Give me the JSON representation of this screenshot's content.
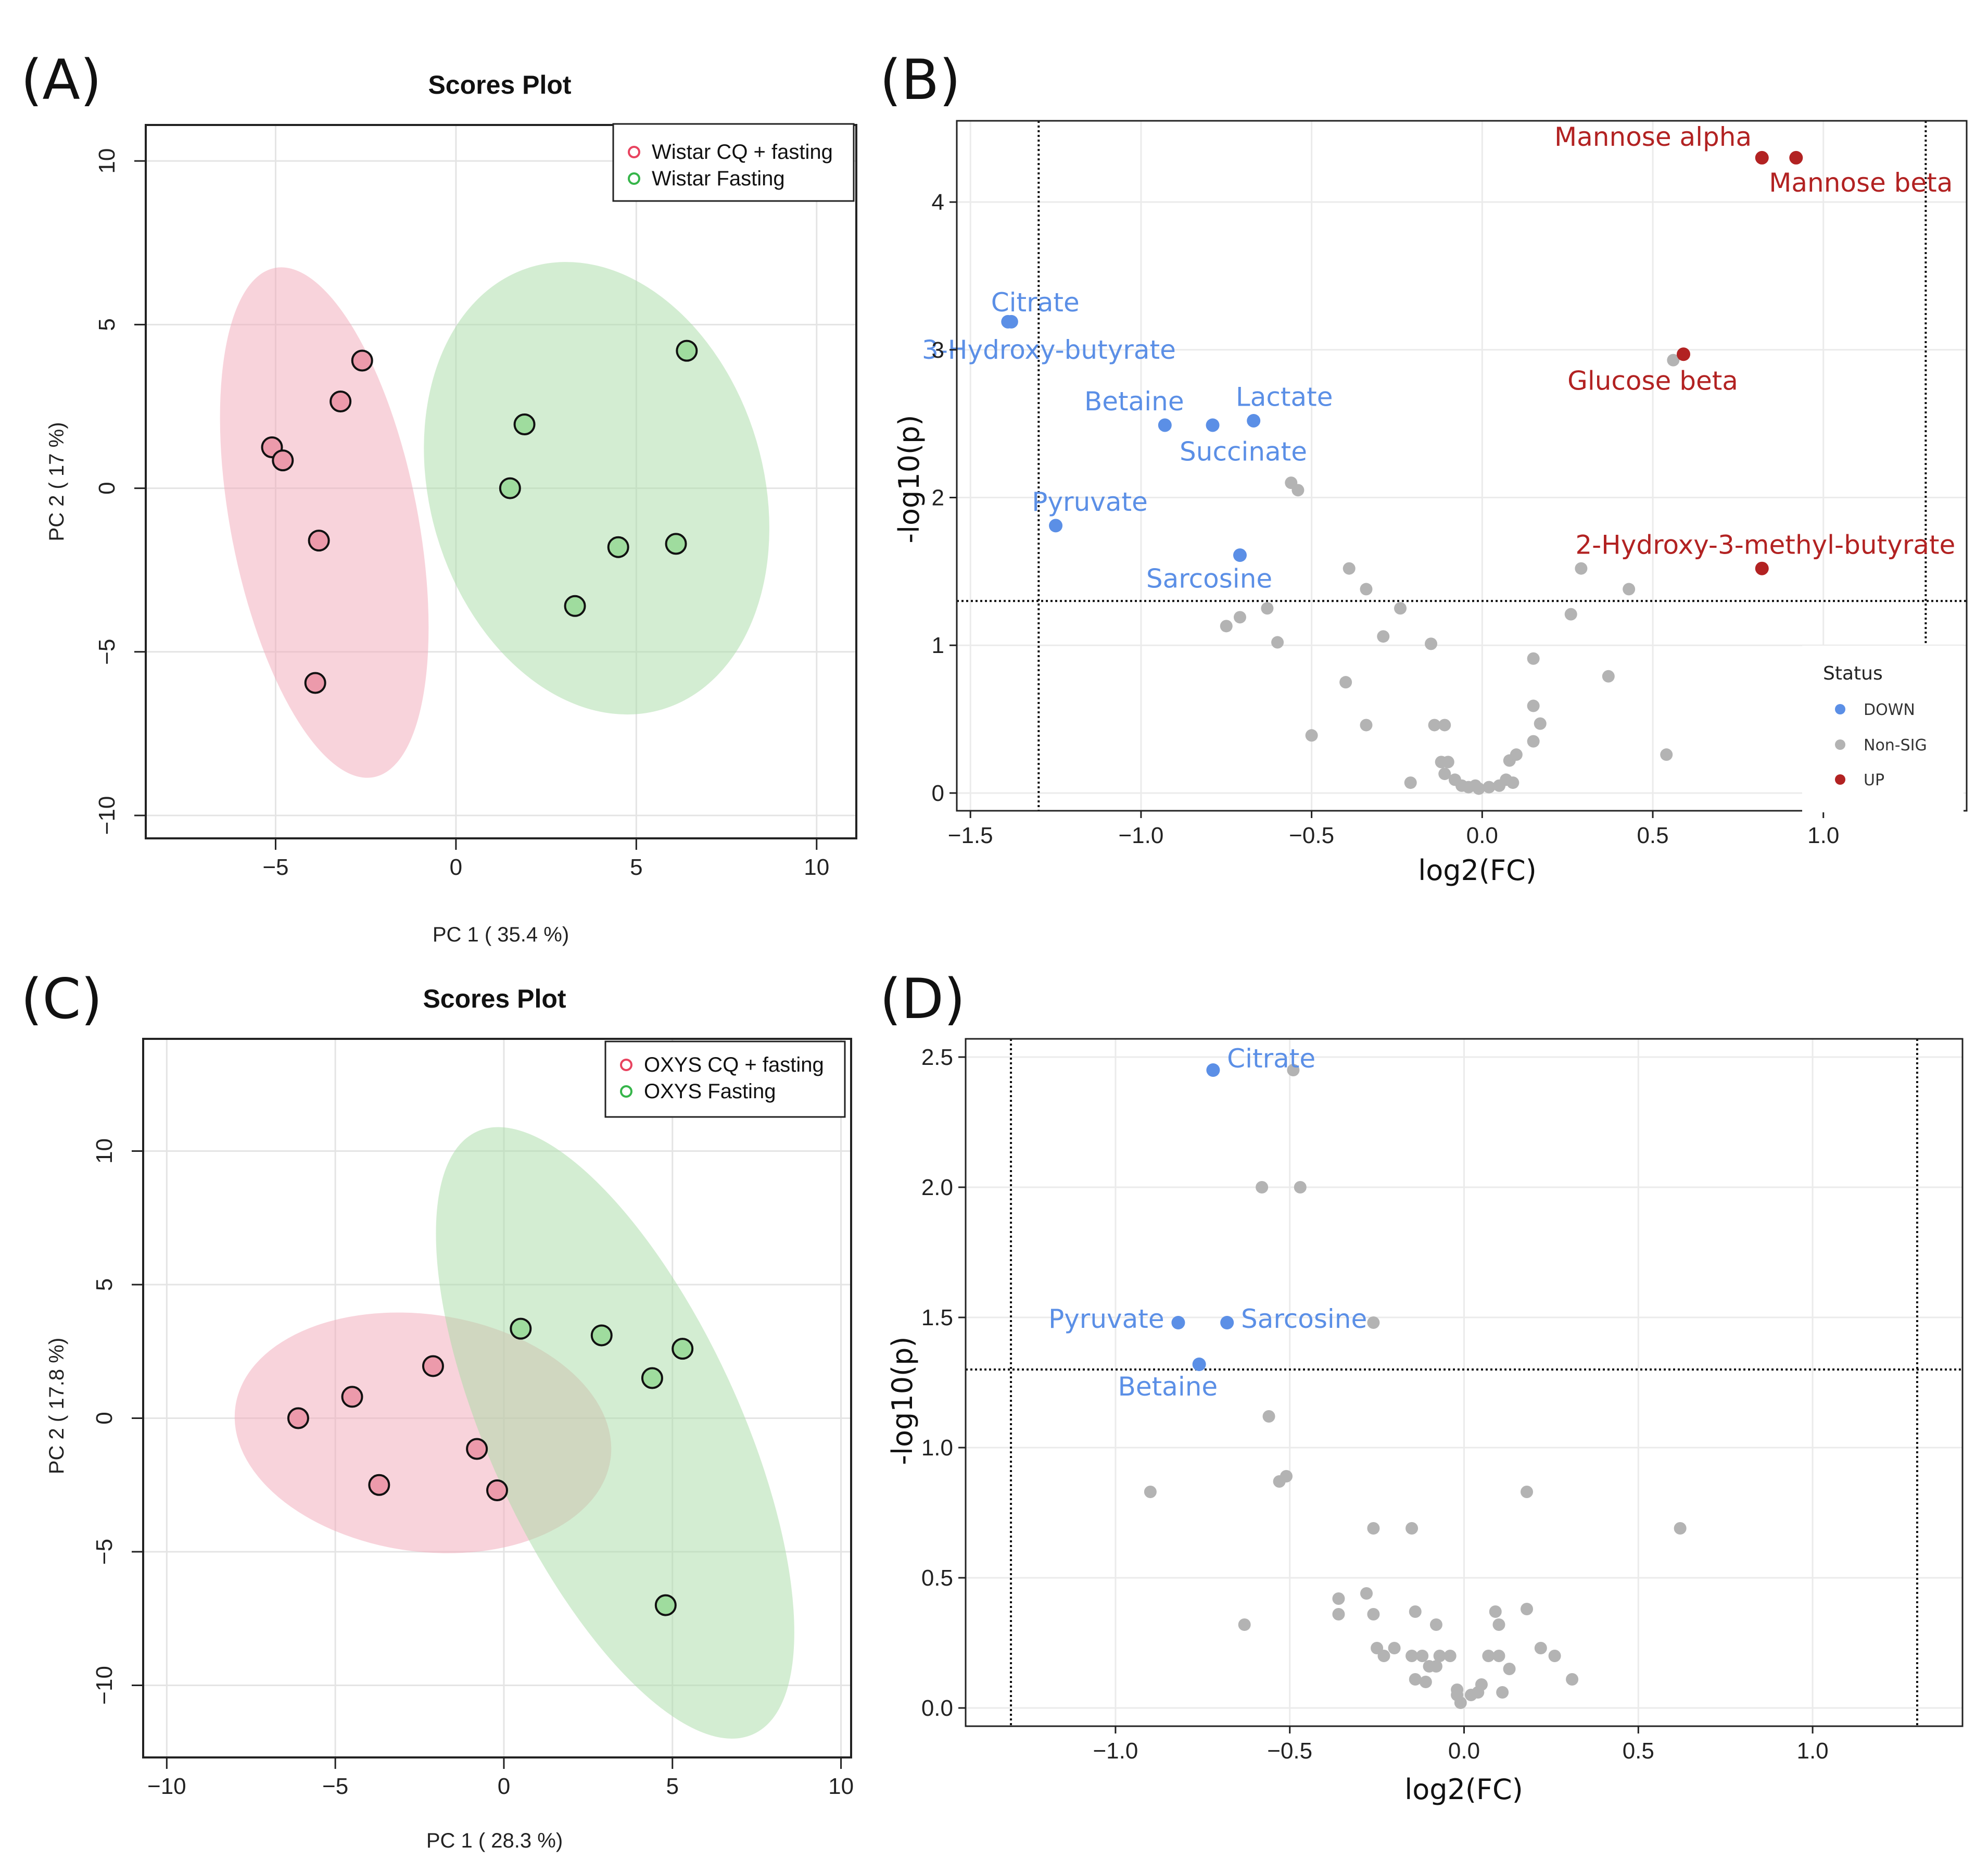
{
  "colors": {
    "down": "#5b8fe6",
    "up": "#b22222",
    "nonsig": "#b3b3b3",
    "groupA_fill": "#f2a7b8",
    "groupA_point": "#ec9aab",
    "groupA_legend": "#e8435f",
    "groupB_fill": "#a7dca5",
    "groupB_point": "#9fdc9e",
    "groupB_legend": "#36b54a"
  },
  "panels": {
    "a": "(A)",
    "b": "(B)",
    "c": "(C)",
    "d": "(D)"
  },
  "chart_data": [
    {
      "type": "scatter",
      "panel": "(A)",
      "title": "Scores Plot",
      "xlabel": "PC 1 ( 35.4 %)",
      "ylabel": "PC 2 ( 17 %)",
      "xlim": [
        -8.6,
        11.1
      ],
      "ylim": [
        -10.7,
        11.1
      ],
      "xticks": [
        -5,
        0,
        5,
        10
      ],
      "yticks": [
        -10,
        -5,
        0,
        5,
        10
      ],
      "xtick_labels": [
        "−5",
        "0",
        "5",
        "10"
      ],
      "ytick_labels": [
        "−10",
        "−5",
        "0",
        "5",
        "10"
      ],
      "legend_position": "top-right",
      "series": [
        {
          "name": "Wistar CQ + fasting",
          "color_key": "groupA",
          "points": [
            [
              -2.6,
              3.9
            ],
            [
              -3.2,
              2.65
            ],
            [
              -5.1,
              1.25
            ],
            [
              -4.8,
              0.85
            ],
            [
              -3.8,
              -1.6
            ],
            [
              -3.9,
              -5.95
            ]
          ],
          "ellipse": {
            "cx": -3.65,
            "cy": -1.05,
            "rx": 7.9,
            "ry": 2.6,
            "angle_deg": -80
          }
        },
        {
          "name": "Wistar Fasting",
          "color_key": "groupB",
          "points": [
            [
              6.4,
              4.2
            ],
            [
              1.9,
              1.95
            ],
            [
              1.5,
              0.0
            ],
            [
              4.5,
              -1.8
            ],
            [
              6.1,
              -1.7
            ],
            [
              3.3,
              -3.6
            ]
          ],
          "ellipse": {
            "cx": 3.9,
            "cy": 0.0,
            "rx": 7.0,
            "ry": 4.65,
            "angle_deg": -75
          }
        }
      ]
    },
    {
      "type": "scatter",
      "subtype": "volcano",
      "panel": "(B)",
      "xlabel": "log2(FC)",
      "ylabel": "-log10(p)",
      "xlim": [
        -1.54,
        1.42
      ],
      "ylim": [
        -0.12,
        4.55
      ],
      "xticks": [
        -1.5,
        -1.0,
        -0.5,
        0.0,
        0.5,
        1.0
      ],
      "yticks": [
        0,
        1,
        2,
        3,
        4
      ],
      "xtick_labels": [
        "−1.5",
        "−1.0",
        "−0.5",
        "0.0",
        "0.5",
        "1.0"
      ],
      "ytick_labels": [
        "0",
        "1",
        "2",
        "3",
        "4"
      ],
      "vlines": [
        -1.3,
        1.3
      ],
      "hline": 1.3,
      "legend": {
        "title": "Status",
        "items": [
          "DOWN",
          "Non-SIG",
          "UP"
        ],
        "position": "bottom-right"
      },
      "labeled_points": [
        {
          "label": "Mannose alpha",
          "x": 0.82,
          "y": 4.3,
          "status": "UP",
          "anchor": "end",
          "dx": -0.03,
          "dy": 0.08
        },
        {
          "label": "Mannose beta",
          "x": 0.92,
          "y": 4.3,
          "status": "UP",
          "anchor": "middle",
          "dx": 0.19,
          "dy": -0.23
        },
        {
          "label": "Glucose beta",
          "x": 0.59,
          "y": 2.97,
          "status": "UP",
          "anchor": "middle",
          "dx": -0.09,
          "dy": -0.24
        },
        {
          "label": "2-Hydroxy-3-methyl-butyrate",
          "x": 0.82,
          "y": 1.52,
          "status": "UP",
          "anchor": "middle",
          "dx": 0.01,
          "dy": 0.1
        },
        {
          "label": "Citrate",
          "x": -1.38,
          "y": 3.19,
          "status": "DOWN",
          "anchor": "middle",
          "dx": 0.07,
          "dy": 0.07
        },
        {
          "label": "3-Hydroxy-butyrate",
          "x": -1.39,
          "y": 3.19,
          "status": "DOWN",
          "anchor": "middle",
          "dx": 0.12,
          "dy": -0.25
        },
        {
          "label": "Betaine",
          "x": -0.93,
          "y": 2.49,
          "status": "DOWN",
          "anchor": "middle",
          "dx": -0.09,
          "dy": 0.1
        },
        {
          "label": "Lactate",
          "x": -0.67,
          "y": 2.52,
          "status": "DOWN",
          "anchor": "middle",
          "dx": 0.09,
          "dy": 0.1
        },
        {
          "label": "Succinate",
          "x": -0.79,
          "y": 2.49,
          "status": "DOWN",
          "anchor": "middle",
          "dx": 0.09,
          "dy": -0.24
        },
        {
          "label": "Pyruvate",
          "x": -1.25,
          "y": 1.81,
          "status": "DOWN",
          "anchor": "middle",
          "dx": 0.1,
          "dy": 0.1
        },
        {
          "label": "Sarcosine",
          "x": -0.71,
          "y": 1.61,
          "status": "DOWN",
          "anchor": "middle",
          "dx": -0.09,
          "dy": -0.22
        }
      ],
      "nonsig_points": [
        [
          0.56,
          2.93
        ],
        [
          -0.56,
          2.1
        ],
        [
          -0.54,
          2.05
        ],
        [
          -0.39,
          1.52
        ],
        [
          -0.34,
          1.38
        ],
        [
          -0.24,
          1.25
        ],
        [
          -0.63,
          1.25
        ],
        [
          -0.75,
          1.13
        ],
        [
          -0.71,
          1.19
        ],
        [
          -0.6,
          1.02
        ],
        [
          -0.29,
          1.06
        ],
        [
          -0.15,
          1.01
        ],
        [
          0.29,
          1.52
        ],
        [
          0.43,
          1.38
        ],
        [
          0.26,
          1.21
        ],
        [
          0.15,
          0.91
        ],
        [
          -0.4,
          0.75
        ],
        [
          0.37,
          0.79
        ],
        [
          -0.34,
          0.46
        ],
        [
          -0.5,
          0.39
        ],
        [
          -0.14,
          0.46
        ],
        [
          -0.11,
          0.46
        ],
        [
          0.15,
          0.59
        ],
        [
          0.17,
          0.47
        ],
        [
          0.15,
          0.35
        ],
        [
          0.08,
          0.22
        ],
        [
          0.1,
          0.26
        ],
        [
          0.54,
          0.26
        ],
        [
          -0.21,
          0.07
        ],
        [
          -0.12,
          0.21
        ],
        [
          -0.1,
          0.21
        ],
        [
          -0.11,
          0.13
        ],
        [
          -0.08,
          0.09
        ],
        [
          -0.06,
          0.05
        ],
        [
          -0.04,
          0.04
        ],
        [
          -0.02,
          0.05
        ],
        [
          -0.01,
          0.03
        ],
        [
          0.02,
          0.04
        ],
        [
          0.05,
          0.05
        ],
        [
          0.07,
          0.09
        ],
        [
          0.09,
          0.07
        ]
      ]
    },
    {
      "type": "scatter",
      "panel": "(C)",
      "title": "Scores Plot",
      "xlabel": "PC 1 ( 28.3 %)",
      "ylabel": "PC 2 ( 17.8 %)",
      "xlim": [
        -10.7,
        10.3
      ],
      "ylim": [
        -12.7,
        14.2
      ],
      "xticks": [
        -10,
        -5,
        0,
        5,
        10
      ],
      "yticks": [
        -10,
        -5,
        0,
        5,
        10
      ],
      "xtick_labels": [
        "−10",
        "−5",
        "0",
        "5",
        "10"
      ],
      "ytick_labels": [
        "−10",
        "−5",
        "0",
        "5",
        "10"
      ],
      "legend_position": "top-right",
      "series": [
        {
          "name": "OXYS CQ + fasting",
          "color_key": "groupA",
          "points": [
            [
              -6.1,
              0.0
            ],
            [
              -4.5,
              0.8
            ],
            [
              -2.1,
              1.95
            ],
            [
              -0.8,
              -1.15
            ],
            [
              -3.7,
              -2.5
            ],
            [
              -0.2,
              -2.7
            ]
          ],
          "ellipse": {
            "cx": -2.4,
            "cy": -0.55,
            "rx": 5.65,
            "ry": 4.4,
            "angle_deg": -10
          }
        },
        {
          "name": "OXYS Fasting",
          "color_key": "groupB",
          "points": [
            [
              0.5,
              3.35
            ],
            [
              2.9,
              3.1
            ],
            [
              5.3,
              2.6
            ],
            [
              4.4,
              1.5
            ],
            [
              4.8,
              -7.0
            ]
          ],
          "ellipse": {
            "cx": 3.3,
            "cy": -0.55,
            "rx": 12.0,
            "ry": 3.8,
            "angle_deg": -70
          }
        }
      ]
    },
    {
      "type": "scatter",
      "subtype": "volcano",
      "panel": "(D)",
      "xlabel": "log2(FC)",
      "ylabel": "-log10(p)",
      "xlim": [
        -1.43,
        1.43
      ],
      "ylim": [
        -0.07,
        2.57
      ],
      "xticks": [
        -1.0,
        -0.5,
        0.0,
        0.5,
        1.0
      ],
      "yticks": [
        0.0,
        0.5,
        1.0,
        1.5,
        2.0,
        2.5
      ],
      "xtick_labels": [
        "−1.0",
        "−0.5",
        "0.0",
        "0.5",
        "1.0"
      ],
      "ytick_labels": [
        "0.0",
        "0.5",
        "1.0",
        "1.5",
        "2.0",
        "2.5"
      ],
      "vlines": [
        -1.3,
        1.3
      ],
      "hline": 1.3,
      "labeled_points": [
        {
          "label": "Citrate",
          "x": -0.72,
          "y": 2.45,
          "status": "DOWN",
          "anchor": "start",
          "dx": 0.04,
          "dy": 0.01
        },
        {
          "label": "Pyruvate",
          "x": -0.82,
          "y": 1.48,
          "status": "DOWN",
          "anchor": "end",
          "dx": -0.04,
          "dy": -0.02
        },
        {
          "label": "Sarcosine",
          "x": -0.68,
          "y": 1.48,
          "status": "DOWN",
          "anchor": "start",
          "dx": 0.04,
          "dy": -0.02
        },
        {
          "label": "Betaine",
          "x": -0.76,
          "y": 1.32,
          "status": "DOWN",
          "anchor": "middle",
          "dx": -0.09,
          "dy": -0.12
        }
      ],
      "nonsig_points": [
        [
          -0.49,
          2.45
        ],
        [
          -0.58,
          2.0
        ],
        [
          -0.47,
          2.0
        ],
        [
          -0.26,
          1.48
        ],
        [
          -0.56,
          1.12
        ],
        [
          -0.53,
          0.87
        ],
        [
          -0.51,
          0.89
        ],
        [
          -0.9,
          0.83
        ],
        [
          0.18,
          0.83
        ],
        [
          -0.26,
          0.69
        ],
        [
          -0.15,
          0.69
        ],
        [
          0.62,
          0.69
        ],
        [
          -0.63,
          0.32
        ],
        [
          -0.36,
          0.42
        ],
        [
          -0.36,
          0.36
        ],
        [
          -0.28,
          0.44
        ],
        [
          -0.26,
          0.36
        ],
        [
          -0.14,
          0.37
        ],
        [
          -0.08,
          0.32
        ],
        [
          0.09,
          0.37
        ],
        [
          0.1,
          0.32
        ],
        [
          0.18,
          0.38
        ],
        [
          -0.25,
          0.23
        ],
        [
          -0.23,
          0.2
        ],
        [
          -0.2,
          0.23
        ],
        [
          -0.15,
          0.2
        ],
        [
          -0.12,
          0.2
        ],
        [
          -0.1,
          0.16
        ],
        [
          -0.07,
          0.2
        ],
        [
          -0.04,
          0.2
        ],
        [
          0.07,
          0.2
        ],
        [
          0.1,
          0.2
        ],
        [
          0.13,
          0.15
        ],
        [
          0.22,
          0.23
        ],
        [
          0.26,
          0.2
        ],
        [
          0.31,
          0.11
        ],
        [
          -0.14,
          0.11
        ],
        [
          -0.11,
          0.1
        ],
        [
          -0.08,
          0.16
        ],
        [
          -0.02,
          0.07
        ],
        [
          -0.01,
          0.02
        ],
        [
          0.02,
          0.05
        ],
        [
          0.04,
          0.06
        ],
        [
          0.05,
          0.09
        ],
        [
          0.11,
          0.06
        ],
        [
          -0.02,
          0.05
        ]
      ]
    }
  ]
}
